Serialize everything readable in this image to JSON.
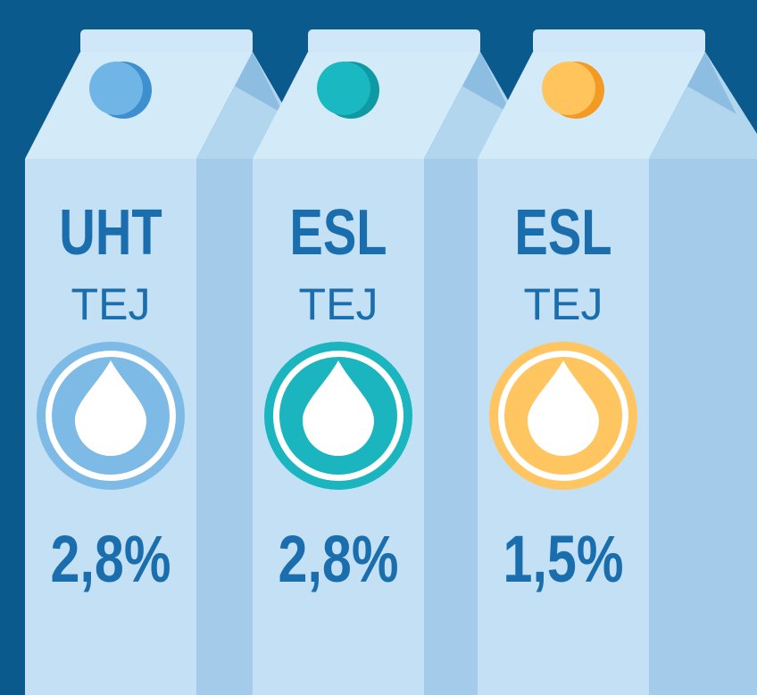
{
  "cartons": [
    {
      "type": "UHT",
      "product": "TEJ",
      "fat": "2,8%"
    },
    {
      "type": "ESL",
      "product": "TEJ",
      "fat": "2,8%"
    },
    {
      "type": "ESL",
      "product": "TEJ",
      "fat": "1,5%"
    }
  ]
}
